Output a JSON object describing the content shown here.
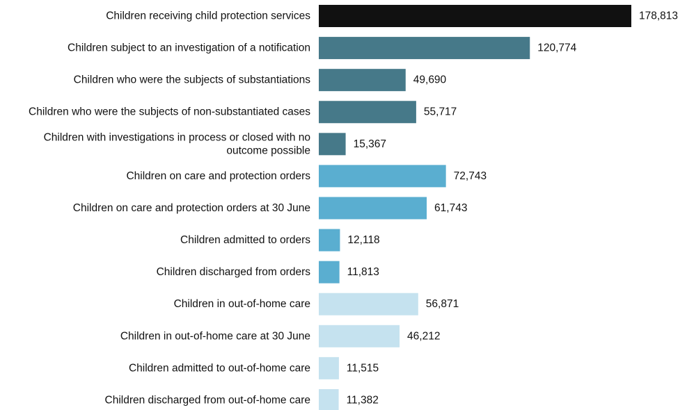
{
  "chart_data": {
    "type": "bar",
    "orientation": "horizontal",
    "title": "",
    "xlabel": "",
    "ylabel": "",
    "xlim": [
      0,
      178813
    ],
    "grid": false,
    "legend": "none",
    "categories": [
      "Children receiving child protection services",
      "Children subject to an investigation of a notification",
      "Children who were the subjects of substantiations",
      "Children who were the subjects of non-substantiated cases",
      "Children with investigations in process or closed with no outcome possible",
      "Children on care and protection orders",
      "Children on care and protection orders at 30 June",
      "Children admitted to orders",
      "Children discharged from orders",
      "Children in out-of-home care",
      "Children in out-of-home care at 30 June",
      "Children admitted to out-of-home care",
      "Children discharged from out-of-home care"
    ],
    "values": [
      178813,
      120774,
      49690,
      55717,
      15367,
      72743,
      61743,
      12118,
      11813,
      56871,
      46212,
      11515,
      11382
    ],
    "value_labels": [
      "178,813",
      "120,774",
      "49,690",
      "55,717",
      "15,367",
      "72,743",
      "61,743",
      "12,118",
      "11,813",
      "56,871",
      "46,212",
      "11,515",
      "11,382"
    ],
    "colors": [
      "#111111",
      "#467989",
      "#467989",
      "#467989",
      "#467989",
      "#5aaed0",
      "#5aaed0",
      "#5aaed0",
      "#5aaed0",
      "#c5e2ef",
      "#c5e2ef",
      "#c5e2ef",
      "#c5e2ef"
    ]
  }
}
